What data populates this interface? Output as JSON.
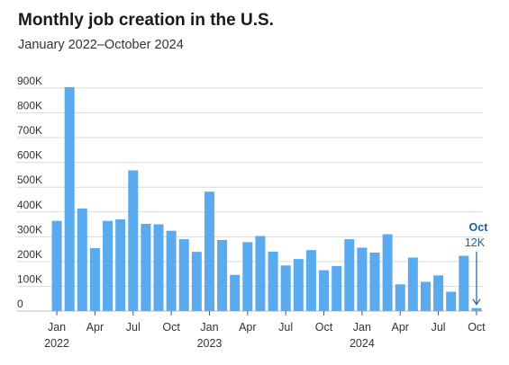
{
  "title": "Monthly job creation in the U.S.",
  "subtitle": "January 2022–October 2024",
  "colors": {
    "bar": "#5aaaf0",
    "grid": "#dcdcdc",
    "annotation": "#1f5fa0",
    "axis": "#333333"
  },
  "chart_data": {
    "type": "bar",
    "title": "Monthly job creation in the U.S.",
    "subtitle": "January 2022–October 2024",
    "xlabel": "",
    "ylabel": "",
    "ylim": [
      0,
      900000
    ],
    "yticks": [
      {
        "value": 0,
        "label": "0"
      },
      {
        "value": 100000,
        "label": "100K"
      },
      {
        "value": 200000,
        "label": "200K"
      },
      {
        "value": 300000,
        "label": "300K"
      },
      {
        "value": 400000,
        "label": "400K"
      },
      {
        "value": 500000,
        "label": "500K"
      },
      {
        "value": 600000,
        "label": "600K"
      },
      {
        "value": 700000,
        "label": "700K"
      },
      {
        "value": 800000,
        "label": "800K"
      },
      {
        "value": 900000,
        "label": "900K"
      }
    ],
    "grid": true,
    "categories": [
      "2022-01",
      "2022-02",
      "2022-03",
      "2022-04",
      "2022-05",
      "2022-06",
      "2022-07",
      "2022-08",
      "2022-09",
      "2022-10",
      "2022-11",
      "2022-12",
      "2023-01",
      "2023-02",
      "2023-03",
      "2023-04",
      "2023-05",
      "2023-06",
      "2023-07",
      "2023-08",
      "2023-09",
      "2023-10",
      "2023-11",
      "2023-12",
      "2024-01",
      "2024-02",
      "2024-03",
      "2024-04",
      "2024-05",
      "2024-06",
      "2024-07",
      "2024-08",
      "2024-09",
      "2024-10"
    ],
    "values": [
      364000,
      904000,
      414000,
      254000,
      364000,
      370000,
      568000,
      352000,
      350000,
      324000,
      290000,
      239000,
      482000,
      287000,
      146000,
      278000,
      303000,
      240000,
      184000,
      210000,
      246000,
      165000,
      182000,
      290000,
      256000,
      236000,
      310000,
      108000,
      216000,
      118000,
      144000,
      78000,
      223000,
      12000
    ],
    "x_tick_labels": [
      {
        "index": 0,
        "month": "Jan",
        "year": "2022"
      },
      {
        "index": 3,
        "month": "Apr",
        "year": ""
      },
      {
        "index": 6,
        "month": "Jul",
        "year": ""
      },
      {
        "index": 9,
        "month": "Oct",
        "year": ""
      },
      {
        "index": 12,
        "month": "Jan",
        "year": "2023"
      },
      {
        "index": 15,
        "month": "Apr",
        "year": ""
      },
      {
        "index": 18,
        "month": "Jul",
        "year": ""
      },
      {
        "index": 21,
        "month": "Oct",
        "year": ""
      },
      {
        "index": 24,
        "month": "Jan",
        "year": "2024"
      },
      {
        "index": 27,
        "month": "Apr",
        "year": ""
      },
      {
        "index": 30,
        "month": "Jul",
        "year": ""
      },
      {
        "index": 33,
        "month": "Oct",
        "year": ""
      }
    ],
    "annotations": [
      {
        "index": 33,
        "label": "Oct",
        "value_label": "12K"
      }
    ]
  }
}
